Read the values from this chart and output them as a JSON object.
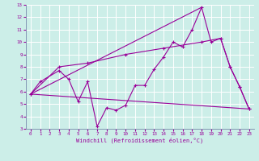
{
  "xlabel": "Windchill (Refroidissement éolien,°C)",
  "background_color": "#cceee8",
  "line_color": "#990099",
  "xlim": [
    -0.5,
    23.5
  ],
  "ylim": [
    3,
    13
  ],
  "xticks": [
    0,
    1,
    2,
    3,
    4,
    5,
    6,
    7,
    8,
    9,
    10,
    11,
    12,
    13,
    14,
    15,
    16,
    17,
    18,
    19,
    20,
    21,
    22,
    23
  ],
  "yticks": [
    3,
    4,
    5,
    6,
    7,
    8,
    9,
    10,
    11,
    12,
    13
  ],
  "series1": {
    "points": [
      [
        0,
        5.8
      ],
      [
        1,
        6.8
      ],
      [
        3,
        7.7
      ],
      [
        4,
        7.0
      ],
      [
        5,
        5.2
      ],
      [
        6,
        6.8
      ],
      [
        7,
        3.2
      ],
      [
        8,
        4.7
      ],
      [
        9,
        4.5
      ],
      [
        10,
        4.9
      ],
      [
        11,
        6.5
      ],
      [
        12,
        6.5
      ],
      [
        13,
        7.8
      ],
      [
        14,
        8.8
      ],
      [
        15,
        10.0
      ],
      [
        16,
        9.6
      ],
      [
        17,
        11.0
      ],
      [
        18,
        12.8
      ],
      [
        19,
        10.0
      ],
      [
        20,
        10.3
      ],
      [
        21,
        8.0
      ],
      [
        22,
        6.4
      ],
      [
        23,
        4.6
      ]
    ]
  },
  "series2": {
    "points": [
      [
        0,
        5.8
      ],
      [
        3,
        8.0
      ],
      [
        6,
        8.3
      ],
      [
        10,
        9.0
      ],
      [
        14,
        9.5
      ],
      [
        18,
        10.0
      ],
      [
        20,
        10.3
      ],
      [
        21,
        8.0
      ],
      [
        22,
        6.4
      ],
      [
        23,
        4.6
      ]
    ]
  },
  "series3": {
    "points": [
      [
        0,
        5.8
      ],
      [
        18,
        12.8
      ]
    ]
  },
  "series4": {
    "points": [
      [
        0,
        5.8
      ],
      [
        23,
        4.6
      ]
    ]
  }
}
